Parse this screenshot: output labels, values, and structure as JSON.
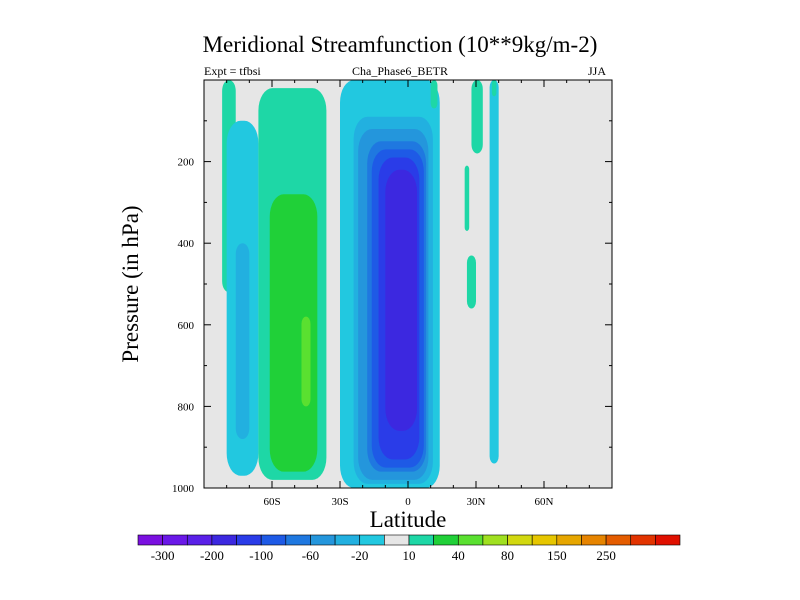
{
  "chart_data": {
    "type": "heatmap",
    "title": "Meridional Streamfunction (10**9kg/m-2)",
    "subtitle_left": "Expt = tfbsi",
    "subtitle_center": "Cha_Phase6_BETR",
    "subtitle_right": "JJA",
    "xlabel": "Latitude",
    "ylabel": "Pressure (in hPa)",
    "xlim": [
      -90,
      90
    ],
    "ylim": [
      1000,
      0
    ],
    "x_ticks": [
      {
        "value": -60,
        "label": "60S"
      },
      {
        "value": -30,
        "label": "30S"
      },
      {
        "value": 0,
        "label": "0"
      },
      {
        "value": 30,
        "label": "30N"
      },
      {
        "value": 60,
        "label": "60N"
      }
    ],
    "y_ticks": [
      {
        "value": 200,
        "label": "200"
      },
      {
        "value": 400,
        "label": "400"
      },
      {
        "value": 600,
        "label": "600"
      },
      {
        "value": 800,
        "label": "800"
      },
      {
        "value": 1000,
        "label": "1000"
      }
    ],
    "colorbar": {
      "colors": [
        "#7a10e0",
        "#6a18e8",
        "#5a20e8",
        "#3c28e0",
        "#2a3ce8",
        "#1e5ae6",
        "#1f78e0",
        "#2496dc",
        "#22b0e0",
        "#22c8e0",
        "#e6e6e6",
        "#1ed7a6",
        "#20d038",
        "#5ae030",
        "#a0e020",
        "#d2d810",
        "#e6c600",
        "#e6a600",
        "#e68400",
        "#e45c00",
        "#e23400",
        "#e01000"
      ],
      "labels": [
        {
          "boundary": 1,
          "text": "-300"
        },
        {
          "boundary": 3,
          "text": "-200"
        },
        {
          "boundary": 5,
          "text": "-100"
        },
        {
          "boundary": 7,
          "text": "-60"
        },
        {
          "boundary": 9,
          "text": "-20"
        },
        {
          "boundary": 11,
          "text": "10"
        },
        {
          "boundary": 13,
          "text": "40"
        },
        {
          "boundary": 15,
          "text": "80"
        },
        {
          "boundary": 17,
          "text": "150"
        },
        {
          "boundary": 19,
          "text": "250"
        }
      ]
    },
    "contour_regions": [
      {
        "name": "nh-polar-cell-positive",
        "lat": [
          -82,
          -76
        ],
        "p": [
          0,
          520
        ],
        "level": 11
      },
      {
        "name": "sh-polar-cell-negative",
        "lat": [
          -80,
          -66
        ],
        "p": [
          100,
          970
        ],
        "level": 9
      },
      {
        "name": "sh-polar-cell-inner",
        "lat": [
          -76,
          -70
        ],
        "p": [
          400,
          880
        ],
        "level": 8
      },
      {
        "name": "sh-midlat-ferrel-outer",
        "lat": [
          -66,
          -36
        ],
        "p": [
          20,
          980
        ],
        "level": 11
      },
      {
        "name": "sh-ferrel-cell",
        "lat": [
          -61,
          -40
        ],
        "p": [
          280,
          960
        ],
        "level": 12
      },
      {
        "name": "sh-ferrel-core",
        "lat": [
          -47,
          -43
        ],
        "p": [
          580,
          800
        ],
        "level": 13
      },
      {
        "name": "hadley-outer",
        "lat": [
          -30,
          14
        ],
        "p": [
          0,
          1000
        ],
        "level": 9
      },
      {
        "name": "hadley-ring-1",
        "lat": [
          -24,
          11
        ],
        "p": [
          90,
          990
        ],
        "level": 8
      },
      {
        "name": "hadley-ring-2",
        "lat": [
          -22,
          9
        ],
        "p": [
          120,
          980
        ],
        "level": 7
      },
      {
        "name": "hadley-ring-3",
        "lat": [
          -18,
          8
        ],
        "p": [
          150,
          960
        ],
        "level": 6
      },
      {
        "name": "hadley-ring-4",
        "lat": [
          -16,
          7
        ],
        "p": [
          170,
          950
        ],
        "level": 5
      },
      {
        "name": "hadley-ring-5",
        "lat": [
          -13,
          5
        ],
        "p": [
          190,
          930
        ],
        "level": 4
      },
      {
        "name": "hadley-core",
        "lat": [
          -10,
          4
        ],
        "p": [
          220,
          860
        ],
        "level": 3
      },
      {
        "name": "nh-strip-1",
        "lat": [
          10,
          13
        ],
        "p": [
          0,
          70
        ],
        "level": 11
      },
      {
        "name": "nh-strip-2",
        "lat": [
          25,
          27
        ],
        "p": [
          210,
          370
        ],
        "level": 11
      },
      {
        "name": "nh-strip-3",
        "lat": [
          26,
          30
        ],
        "p": [
          430,
          560
        ],
        "level": 11
      },
      {
        "name": "nh-strip-4",
        "lat": [
          28,
          33
        ],
        "p": [
          0,
          180
        ],
        "level": 11
      },
      {
        "name": "nh-strip-5",
        "lat": [
          36,
          40
        ],
        "p": [
          0,
          940
        ],
        "level": 9
      },
      {
        "name": "nh-strip-6",
        "lat": [
          37,
          39
        ],
        "p": [
          0,
          40
        ],
        "level": 11
      }
    ]
  }
}
